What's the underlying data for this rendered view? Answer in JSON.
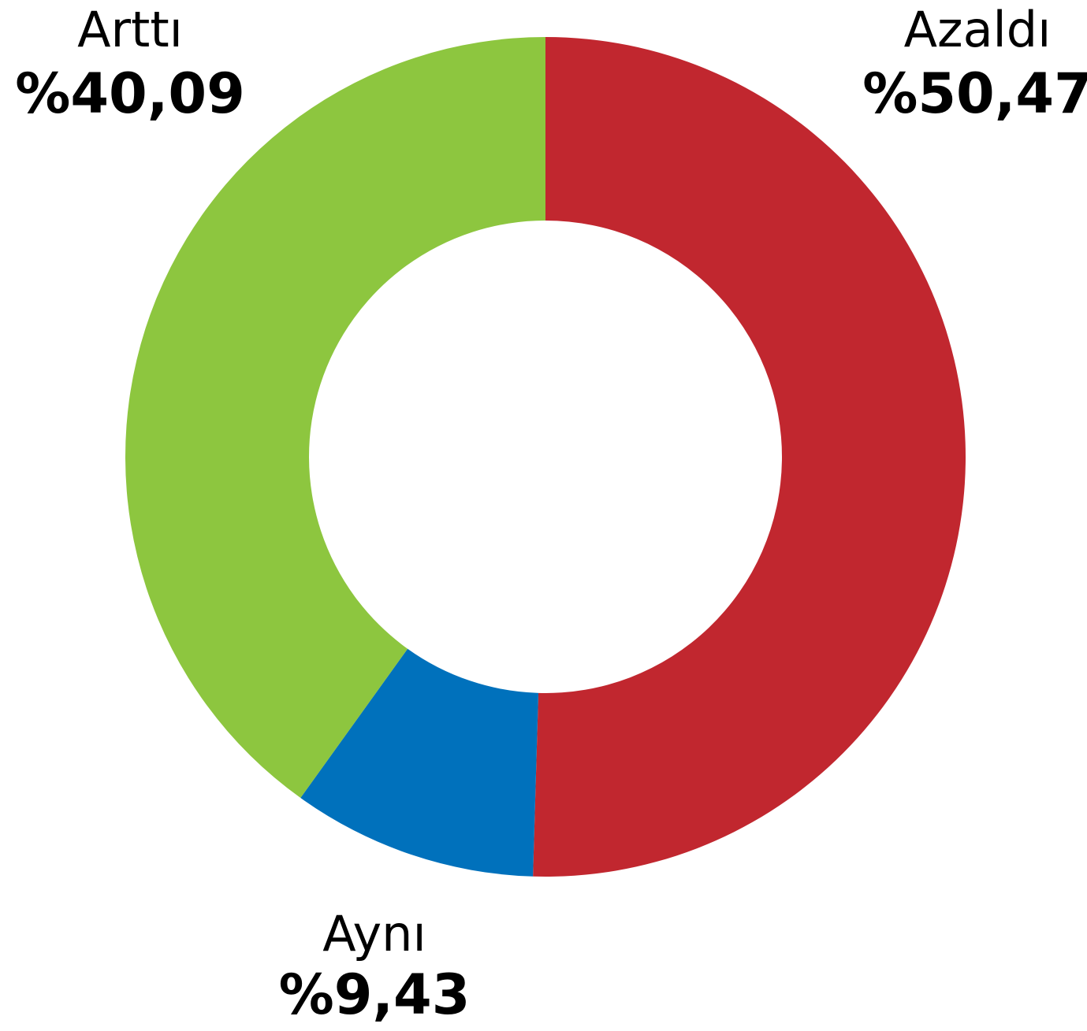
{
  "chart_data": {
    "type": "donut",
    "categories": [
      "Azaldı",
      "Aynı",
      "Arttı"
    ],
    "values": [
      50.47,
      9.43,
      40.09
    ],
    "value_labels": [
      "%50,47",
      "%9,43",
      "%40,09"
    ],
    "colors": [
      "#c1272f",
      "#0071bc",
      "#8dc63f"
    ]
  }
}
